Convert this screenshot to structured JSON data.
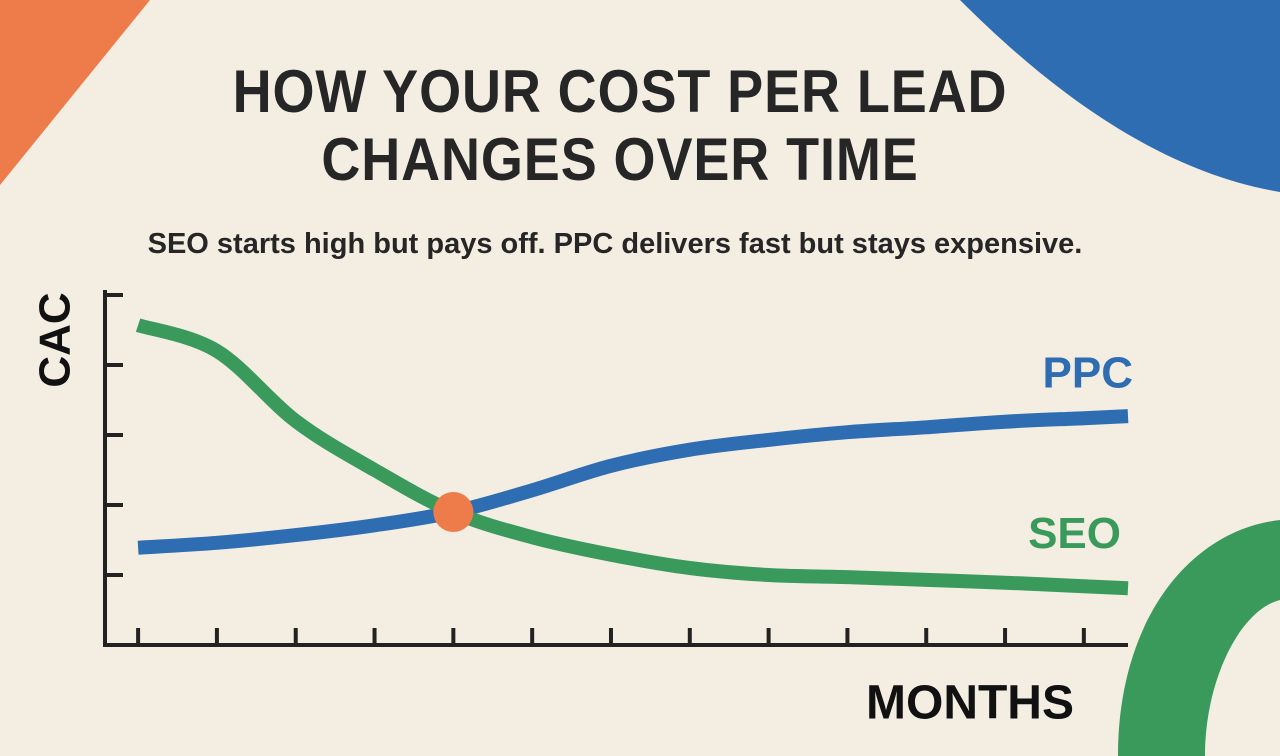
{
  "chart_data": {
    "type": "line",
    "title": "HOW YOUR COST PER LEAD CHANGES OVER TIME",
    "subtitle": "SEO starts high but pays off. PPC delivers fast but stays expensive.",
    "y_label": "CAC",
    "x_label": "MONTHS",
    "x": [
      0,
      1,
      2,
      3,
      4,
      5,
      6,
      7,
      8,
      9,
      10,
      11,
      12,
      12.56
    ],
    "series": [
      {
        "name": "PPC",
        "color": "#2f6db3",
        "values": [
          1.39,
          1.46,
          1.57,
          1.71,
          1.9,
          2.21,
          2.56,
          2.79,
          2.93,
          3.04,
          3.11,
          3.19,
          3.24,
          3.27
        ]
      },
      {
        "name": "SEO",
        "color": "#3a9a5b",
        "values": [
          4.57,
          4.2,
          3.2,
          2.5,
          1.9,
          1.54,
          1.29,
          1.1,
          1.0,
          0.97,
          0.93,
          0.89,
          0.84,
          0.81
        ]
      }
    ],
    "highlight": {
      "x": 4,
      "y": 1.9,
      "color": "#ee7b4a"
    },
    "xlim": [
      -0.42,
      12.56
    ],
    "xticks": [
      0,
      1,
      2,
      3,
      4,
      5,
      6,
      7,
      8,
      9,
      10,
      11,
      12
    ],
    "ylim": [
      0,
      5
    ],
    "yticks": [
      1,
      2,
      3,
      4,
      5
    ]
  }
}
